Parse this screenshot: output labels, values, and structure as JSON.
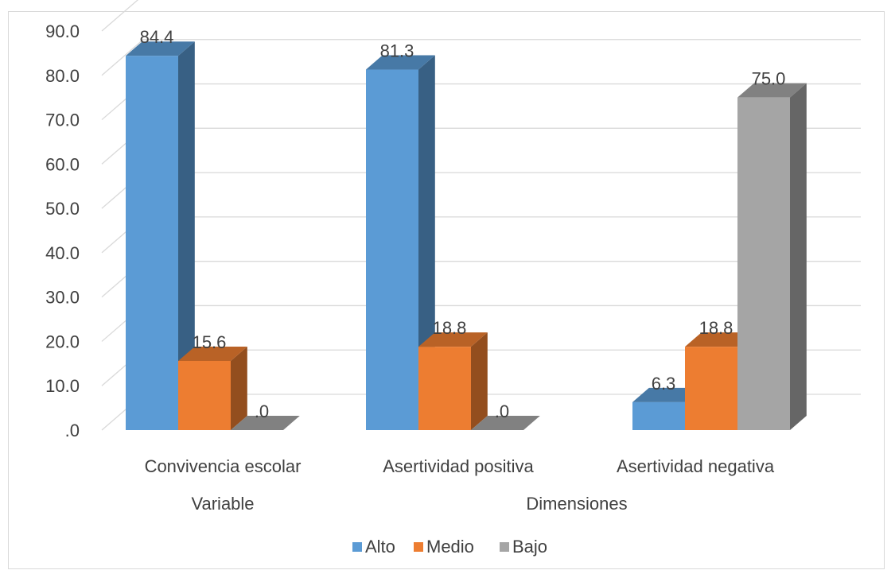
{
  "chart_data": {
    "type": "bar",
    "categories": [
      "Convivencia escolar",
      "Asertividad positiva",
      "Asertividad negativa"
    ],
    "groups": [
      "Variable",
      "Dimensiones"
    ],
    "series": [
      {
        "name": "Alto",
        "values": [
          84.4,
          81.3,
          6.3
        ],
        "labels": [
          "84.4",
          "81.3",
          "6.3"
        ],
        "color": "#5b9bd5"
      },
      {
        "name": "Medio",
        "values": [
          15.6,
          18.8,
          18.8
        ],
        "labels": [
          "15.6",
          "18.8",
          "18.8"
        ],
        "color": "#ed7d31"
      },
      {
        "name": "Bajo",
        "values": [
          0.0,
          0.0,
          75.0
        ],
        "labels": [
          ".0",
          ".0",
          "75.0"
        ],
        "color": "#a5a5a5"
      }
    ],
    "y_ticks": [
      ".0",
      "10.0",
      "20.0",
      "30.0",
      "40.0",
      "50.0",
      "60.0",
      "70.0",
      "80.0",
      "90.0"
    ],
    "ylim": [
      0,
      100
    ],
    "three_d": true,
    "grid": true,
    "legend_position": "bottom"
  }
}
